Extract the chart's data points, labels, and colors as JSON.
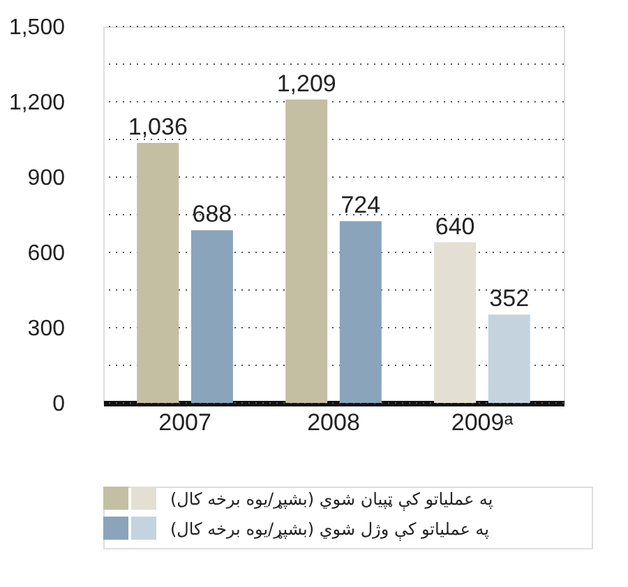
{
  "chart_data": {
    "type": "bar",
    "categories": [
      "2007",
      "2008",
      "2009ᵃ"
    ],
    "series": [
      {
        "name": "په عملیاتو کې ټپیان شوي (بشپړ/یوه برخه کال)",
        "color": "#c4bea3",
        "colors": [
          "#c4bea3",
          "#c4bea3",
          "#e3dfd3"
        ],
        "values": [
          1036,
          1209,
          640
        ],
        "value_labels": [
          "1,036",
          "1,209",
          "640"
        ]
      },
      {
        "name": "په عملیاتو کې وژل شوي (بشپړ/یوه برخه کال)",
        "color": "#8aa4bb",
        "colors": [
          "#8aa4bb",
          "#8aa4bb",
          "#c5d3de"
        ],
        "values": [
          688,
          724,
          352
        ],
        "value_labels": [
          "688",
          "724",
          "352"
        ]
      }
    ],
    "ylim": [
      0,
      1500
    ],
    "yticks": [
      {
        "value": 0,
        "label": "0"
      },
      {
        "value": 150,
        "label": null
      },
      {
        "value": 300,
        "label": "300"
      },
      {
        "value": 450,
        "label": null
      },
      {
        "value": 600,
        "label": "600"
      },
      {
        "value": 750,
        "label": null
      },
      {
        "value": 900,
        "label": "900"
      },
      {
        "value": 1050,
        "label": null
      },
      {
        "value": 1200,
        "label": "1,200"
      },
      {
        "value": 1350,
        "label": null
      },
      {
        "value": 1500,
        "label": "1,500"
      }
    ],
    "grid": "y",
    "legend": "bottom"
  }
}
